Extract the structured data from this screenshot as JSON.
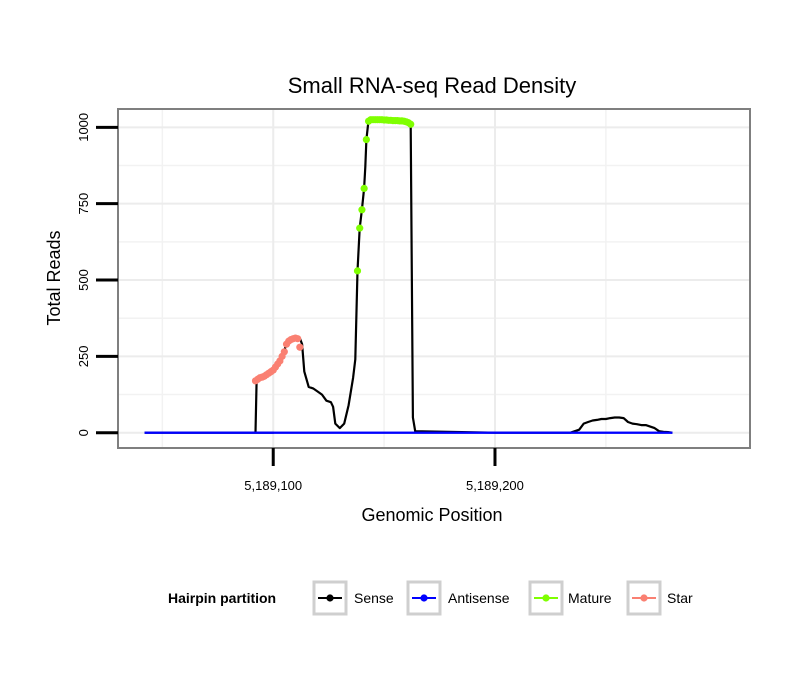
{
  "chart_data": {
    "type": "line",
    "title": "Small RNA-seq Read Density",
    "xlabel": "Genomic Position",
    "ylabel": "Total Reads",
    "xlim": [
      5189030,
      5189315
    ],
    "ylim": [
      -50,
      1060
    ],
    "x_ticks": [
      5189100,
      5189200
    ],
    "x_tick_labels": [
      "5,189,100",
      "5,189,200"
    ],
    "y_ticks": [
      0,
      250,
      500,
      750,
      1000
    ],
    "y_tick_labels": [
      "0",
      "250",
      "500",
      "750",
      "1000"
    ],
    "grid": true,
    "legend": {
      "title": "Hairpin partition",
      "position": "bottom",
      "entries": [
        {
          "name": "Sense",
          "color": "#000000"
        },
        {
          "name": "Antisense",
          "color": "#0000ff"
        },
        {
          "name": "Mature",
          "color": "#7fff00"
        },
        {
          "name": "Star",
          "color": "#fa8072"
        }
      ]
    },
    "series": [
      {
        "name": "Sense",
        "color": "#000000",
        "x": [
          5189042,
          5189100,
          5189092,
          5189092.5,
          5189094,
          5189096,
          5189098,
          5189100,
          5189102,
          5189104,
          5189106,
          5189108,
          5189110,
          5189112,
          5189113,
          5189114,
          5189116,
          5189118,
          5189120,
          5189122,
          5189124,
          5189126,
          5189127,
          5189128,
          5189130,
          5189132,
          5189134,
          5189136,
          5189137,
          5189138,
          5189139,
          5189140,
          5189141,
          5189141.5,
          5189142,
          5189143,
          5189144,
          5189145,
          5189146,
          5189147,
          5189148,
          5189149,
          5189150,
          5189152,
          5189154,
          5189156,
          5189158,
          5189160,
          5189161,
          5189162,
          5189163,
          5189164,
          5189200,
          5189234,
          5189236,
          5189238,
          5189240,
          5189242,
          5189244,
          5189246,
          5189248,
          5189250,
          5189252,
          5189254,
          5189256,
          5189258,
          5189260,
          5189262,
          5189264,
          5189266,
          5189268,
          5189270,
          5189272,
          5189274,
          5189276,
          5189278,
          5189280
        ],
        "y": [
          0,
          0,
          0,
          170,
          180,
          185,
          195,
          205,
          225,
          250,
          290,
          305,
          310,
          310,
          290,
          200,
          150,
          145,
          135,
          125,
          105,
          100,
          85,
          30,
          15,
          30,
          90,
          180,
          240,
          530,
          670,
          730,
          800,
          870,
          960,
          1025,
          1025,
          1025,
          1025,
          1025,
          1025,
          1022,
          1022,
          1022,
          1022,
          1020,
          1020,
          1018,
          1015,
          1005,
          50,
          5,
          0,
          0,
          5,
          10,
          30,
          35,
          40,
          42,
          45,
          45,
          48,
          50,
          50,
          48,
          35,
          30,
          28,
          25,
          25,
          20,
          15,
          5,
          3,
          2,
          0
        ]
      },
      {
        "name": "Antisense",
        "color": "#0000ff",
        "x": [
          5189042,
          5189280
        ],
        "y": [
          0,
          0
        ]
      },
      {
        "name": "Mature",
        "color": "#7fff00",
        "x": [
          5189138,
          5189139,
          5189140,
          5189141,
          5189142,
          5189143,
          5189144,
          5189145,
          5189146,
          5189147,
          5189148,
          5189149,
          5189150,
          5189151,
          5189152,
          5189153,
          5189154,
          5189155,
          5189156,
          5189157,
          5189158,
          5189159,
          5189160,
          5189161,
          5189162
        ],
        "y": [
          530,
          670,
          730,
          800,
          960,
          1020,
          1025,
          1025,
          1025,
          1025,
          1025,
          1025,
          1024,
          1024,
          1023,
          1023,
          1022,
          1022,
          1022,
          1021,
          1021,
          1020,
          1018,
          1015,
          1010
        ]
      },
      {
        "name": "Star",
        "color": "#fa8072",
        "x": [
          5189092,
          5189093,
          5189094,
          5189095,
          5189096,
          5189097,
          5189098,
          5189099,
          5189100,
          5189101,
          5189102,
          5189103,
          5189104,
          5189105,
          5189106,
          5189107,
          5189108,
          5189109,
          5189110,
          5189111,
          5189112
        ],
        "y": [
          170,
          175,
          180,
          182,
          185,
          190,
          195,
          200,
          205,
          215,
          225,
          235,
          250,
          265,
          290,
          300,
          305,
          308,
          310,
          308,
          280
        ]
      }
    ]
  }
}
